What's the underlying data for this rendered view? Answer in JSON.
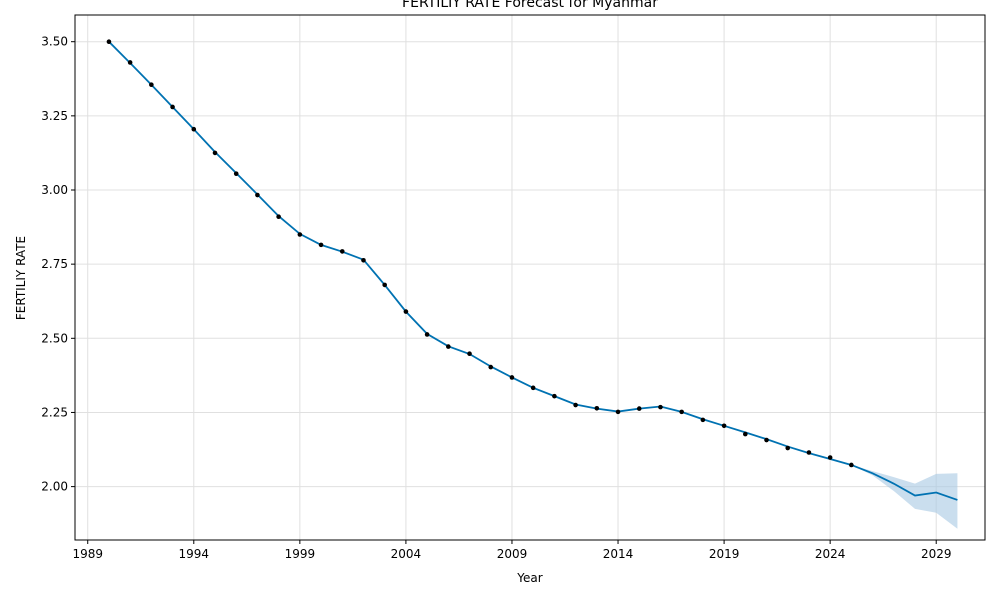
{
  "chart_data": {
    "type": "line",
    "title": "FERTILIY RATE Forecast for Myanmar",
    "xlabel": "Year",
    "ylabel": "FERTILIY RATE",
    "xlim": [
      1988.4,
      2031.3
    ],
    "ylim": [
      1.82,
      3.59
    ],
    "x_ticks": [
      1989,
      1994,
      1999,
      2004,
      2009,
      2014,
      2019,
      2024,
      2029
    ],
    "y_ticks": [
      2.0,
      2.25,
      2.5,
      2.75,
      3.0,
      3.25,
      3.5
    ],
    "y_tick_labels": [
      "2.00",
      "2.25",
      "2.50",
      "2.75",
      "3.00",
      "3.25",
      "3.50"
    ],
    "grid": true,
    "colors": {
      "line": "#0072B2",
      "band": "#A6C8E3",
      "points": "#000000",
      "grid": "#E0E0E0"
    },
    "actual": {
      "x": [
        1990,
        1991,
        1992,
        1993,
        1994,
        1995,
        1996,
        1997,
        1998,
        1999,
        2000,
        2001,
        2002,
        2003,
        2004,
        2005,
        2006,
        2007,
        2008,
        2009,
        2010,
        2011,
        2012,
        2013,
        2014,
        2015,
        2016,
        2017,
        2018,
        2019,
        2020,
        2021,
        2022,
        2023,
        2024,
        2025
      ],
      "y": [
        3.5,
        3.43,
        3.355,
        3.28,
        3.205,
        3.125,
        3.055,
        2.983,
        2.91,
        2.85,
        2.815,
        2.793,
        2.763,
        2.68,
        2.59,
        2.513,
        2.472,
        2.448,
        2.403,
        2.368,
        2.333,
        2.305,
        2.275,
        2.264,
        2.252,
        2.263,
        2.268,
        2.252,
        2.225,
        2.205,
        2.177,
        2.157,
        2.13,
        2.115,
        2.098,
        2.073
      ]
    },
    "forecast": {
      "x": [
        1990,
        1991,
        1992,
        1993,
        1994,
        1995,
        1996,
        1997,
        1998,
        1999,
        2000,
        2001,
        2002,
        2003,
        2004,
        2005,
        2006,
        2007,
        2008,
        2009,
        2010,
        2011,
        2012,
        2013,
        2014,
        2015,
        2016,
        2017,
        2018,
        2019,
        2020,
        2021,
        2022,
        2023,
        2024,
        2025,
        2026,
        2027,
        2028,
        2029,
        2030
      ],
      "y": [
        3.5,
        3.428,
        3.355,
        3.28,
        3.205,
        3.128,
        3.057,
        2.985,
        2.912,
        2.852,
        2.815,
        2.792,
        2.765,
        2.68,
        2.59,
        2.515,
        2.473,
        2.447,
        2.405,
        2.368,
        2.333,
        2.305,
        2.277,
        2.263,
        2.253,
        2.263,
        2.27,
        2.252,
        2.227,
        2.205,
        2.183,
        2.16,
        2.135,
        2.113,
        2.093,
        2.073,
        2.045,
        2.01,
        1.97,
        1.98,
        1.955
      ],
      "lower": [
        3.5,
        3.428,
        3.355,
        3.28,
        3.205,
        3.128,
        3.057,
        2.985,
        2.912,
        2.852,
        2.815,
        2.792,
        2.765,
        2.68,
        2.59,
        2.515,
        2.473,
        2.447,
        2.405,
        2.368,
        2.333,
        2.305,
        2.277,
        2.263,
        2.253,
        2.263,
        2.27,
        2.252,
        2.227,
        2.205,
        2.183,
        2.16,
        2.135,
        2.113,
        2.093,
        2.073,
        2.038,
        1.985,
        1.925,
        1.912,
        1.858
      ],
      "upper": [
        3.5,
        3.428,
        3.355,
        3.28,
        3.205,
        3.128,
        3.057,
        2.985,
        2.912,
        2.852,
        2.815,
        2.792,
        2.765,
        2.68,
        2.59,
        2.515,
        2.473,
        2.447,
        2.405,
        2.368,
        2.333,
        2.305,
        2.277,
        2.263,
        2.253,
        2.263,
        2.27,
        2.252,
        2.227,
        2.205,
        2.183,
        2.16,
        2.135,
        2.113,
        2.093,
        2.073,
        2.052,
        2.032,
        2.01,
        2.043,
        2.045
      ]
    }
  }
}
